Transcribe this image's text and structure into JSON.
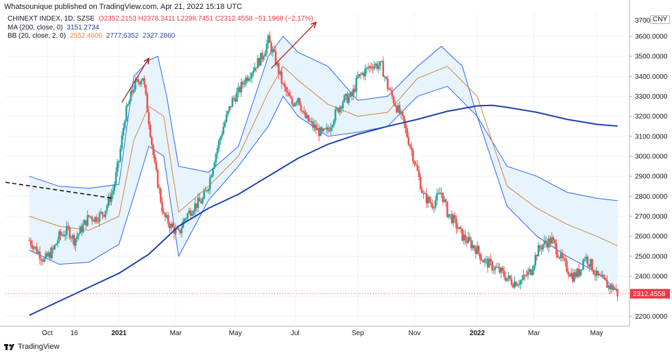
{
  "header": {
    "publisher": "Whatsounique published on TradingView.com, Apr 21, 2022 15:18 UTC"
  },
  "legend": {
    "symbol": "CHINEXT INDEX, 1D, SZSE",
    "ohlc": "O2352.2153 H2378.3411 L2298.7451 C2312.4558 −51.1968 (−2.17%)",
    "ma_label": "MA (200, close, 0)",
    "ma_value": "3151.2734",
    "bb_label": "BB (20, close, 2, 0)",
    "bb_basis": "2552.4606",
    "bb_upper": "2777.6352",
    "bb_lower": "2327.2860"
  },
  "currency": "CNY",
  "footer": {
    "brand": "TradingView"
  },
  "colors": {
    "up": "#26a69a",
    "down": "#ef5350",
    "ma200": "#1e40af",
    "bb_band": "#2962ff",
    "bb_fill": "#e3f2fd",
    "bb_basis": "#d4813a",
    "annotation_arrow": "#b71c1c",
    "trendline": "#000000",
    "last_price_bg": "#f23645"
  },
  "chart_data": {
    "type": "candlestick",
    "y_ticks": [
      2200,
      2300,
      2400,
      2500,
      2600,
      2700,
      2800,
      2900,
      3000,
      3100,
      3200,
      3300,
      3400,
      3500,
      3600
    ],
    "y_tick_labels": [
      "2200.0000",
      "2300.0000",
      "2400.0000",
      "2500.0000",
      "2600.0000",
      "2700.0000",
      "2800.0000",
      "2900.0000",
      "3000.0000",
      "3100.0000",
      "3200.0000",
      "3300.0000",
      "3400.0000",
      "3500.0000",
      "3600.0000"
    ],
    "y_top_label_partial": "3700",
    "ylim": [
      2150,
      3720
    ],
    "x_labels": [
      "Oct",
      "16",
      "2021",
      "Mar",
      "May",
      "Jul",
      "Sep",
      "Nov",
      "2022",
      "Mar",
      "May"
    ],
    "x_label_months": [
      0.6,
      1.5,
      3.0,
      4.9,
      6.9,
      8.9,
      11.0,
      12.9,
      15.0,
      16.9,
      19.0
    ],
    "xlim_months": [
      -0.8,
      20.1
    ],
    "last_price": 2312.4558,
    "last_price_label": "2312.4558",
    "price_series_months": [
      0.0,
      0.2,
      0.5,
      0.8,
      1.0,
      1.3,
      1.5,
      1.8,
      2.0,
      2.2,
      2.5,
      2.8,
      3.0,
      3.2,
      3.5,
      3.8,
      4.0,
      4.2,
      4.5,
      4.8,
      5.0,
      5.2,
      5.5,
      5.8,
      6.0,
      6.2,
      6.5,
      6.8,
      7.0,
      7.2,
      7.5,
      7.8,
      8.0,
      8.2,
      8.5,
      8.8,
      9.0,
      9.2,
      9.5,
      9.8,
      10.0,
      10.2,
      10.5,
      10.8,
      11.0,
      11.2,
      11.5,
      11.8,
      12.0,
      12.2,
      12.5,
      12.8,
      13.0,
      13.2,
      13.5,
      13.8,
      14.0,
      14.2,
      14.5,
      14.8,
      15.0,
      15.2,
      15.5,
      15.8,
      16.0,
      16.2,
      16.5,
      16.8,
      17.0,
      17.2,
      17.5,
      17.8,
      18.0,
      18.2,
      18.4,
      18.6,
      18.8,
      19.0,
      19.2,
      19.4,
      19.6,
      19.7
    ],
    "price_series_close": [
      2580,
      2540,
      2480,
      2530,
      2600,
      2630,
      2580,
      2650,
      2700,
      2690,
      2720,
      2830,
      2980,
      3200,
      3350,
      3400,
      3180,
      2950,
      2700,
      2640,
      2610,
      2690,
      2750,
      2780,
      2860,
      2990,
      3150,
      3280,
      3320,
      3380,
      3440,
      3500,
      3580,
      3500,
      3350,
      3260,
      3300,
      3200,
      3150,
      3110,
      3130,
      3200,
      3280,
      3300,
      3390,
      3420,
      3460,
      3450,
      3350,
      3280,
      3180,
      3030,
      2920,
      2800,
      2760,
      2820,
      2720,
      2680,
      2600,
      2560,
      2530,
      2480,
      2450,
      2420,
      2390,
      2370,
      2380,
      2430,
      2520,
      2560,
      2580,
      2490,
      2440,
      2400,
      2420,
      2500,
      2460,
      2400,
      2380,
      2350,
      2340,
      2312
    ],
    "series": [
      {
        "name": "MA (200, close, 0)",
        "x": [
          0,
          1,
          2,
          3,
          4,
          5,
          6,
          7,
          8,
          9,
          10,
          11,
          12,
          13,
          14,
          15,
          15.5,
          16,
          17,
          18,
          19,
          19.7
        ],
        "values": [
          2205,
          2275,
          2345,
          2415,
          2510,
          2650,
          2740,
          2810,
          2900,
          2990,
          3060,
          3110,
          3150,
          3185,
          3225,
          3252,
          3255,
          3245,
          3220,
          3185,
          3160,
          3151
        ]
      },
      {
        "name": "BB upper",
        "x": [
          0,
          1,
          2,
          3,
          3.5,
          4.0,
          4.3,
          4.6,
          5,
          6,
          7,
          8,
          8.5,
          9,
          10,
          11,
          12,
          13,
          13.8,
          14.5,
          15,
          16,
          17,
          18,
          19,
          19.7
        ],
        "values": [
          2900,
          2850,
          2840,
          2860,
          3400,
          3480,
          3500,
          3300,
          2950,
          2920,
          3050,
          3500,
          3600,
          3520,
          3450,
          3280,
          3300,
          3450,
          3550,
          3450,
          3200,
          2950,
          2900,
          2820,
          2790,
          2778
        ]
      },
      {
        "name": "BB lower",
        "x": [
          0,
          1,
          2,
          3,
          3.5,
          4.0,
          4.5,
          5,
          6,
          7,
          8,
          8.5,
          9,
          10,
          11,
          12,
          13,
          14,
          15,
          16,
          17,
          18,
          19,
          19.7
        ],
        "values": [
          2530,
          2460,
          2470,
          2560,
          2800,
          3050,
          3000,
          2500,
          2780,
          2950,
          3150,
          3300,
          3200,
          3100,
          3120,
          3150,
          3300,
          3350,
          3200,
          2750,
          2600,
          2500,
          2420,
          2327
        ]
      },
      {
        "name": "BB basis",
        "x": [
          0,
          1,
          2,
          3,
          3.5,
          4.0,
          4.5,
          5,
          6,
          7,
          8,
          8.5,
          9,
          10,
          11,
          12,
          13,
          14,
          15,
          16,
          17,
          18,
          19,
          19.7
        ],
        "values": [
          2700,
          2650,
          2630,
          2700,
          3080,
          3250,
          3200,
          2720,
          2850,
          3000,
          3320,
          3450,
          3380,
          3260,
          3200,
          3220,
          3390,
          3450,
          3300,
          2850,
          2740,
          2660,
          2600,
          2552
        ]
      }
    ],
    "annotations": [
      {
        "type": "dashed-trendline",
        "x": [
          -0.8,
          2.8
        ],
        "y": [
          2870,
          2790
        ]
      },
      {
        "type": "arrow",
        "x": [
          3.1,
          4.0
        ],
        "y": [
          3270,
          3490
        ]
      },
      {
        "type": "arrow",
        "x": [
          8.1,
          9.6
        ],
        "y": [
          3440,
          3670
        ]
      }
    ]
  }
}
